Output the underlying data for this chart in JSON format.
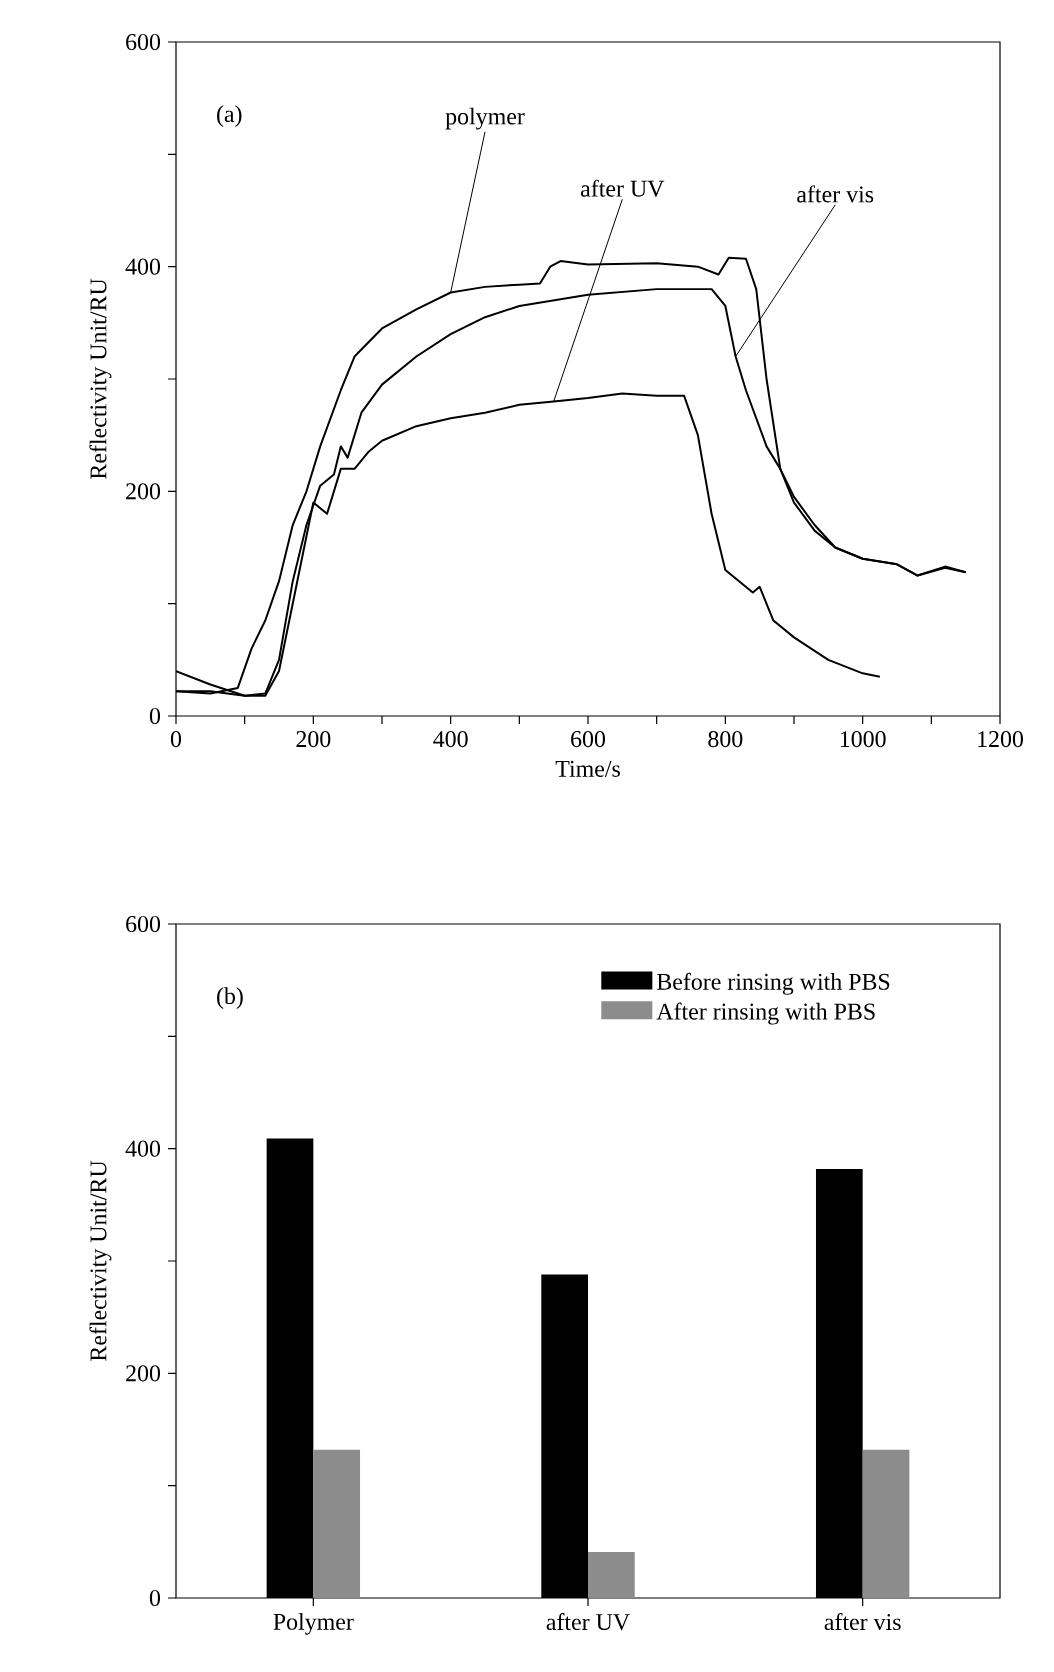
{
  "chart_data": [
    {
      "type": "line",
      "xlabel": "Time/s",
      "ylabel": "Reflectivity Unit/RU",
      "annotations": [
        "(a)"
      ],
      "xlim": [
        0,
        1200
      ],
      "ylim": [
        0,
        600
      ],
      "xticks": [
        0,
        {
          "value": 100,
          "label": null
        },
        200,
        {
          "value": 300,
          "label": null
        },
        400,
        {
          "value": 500,
          "label": null
        },
        600,
        {
          "value": 700,
          "label": null
        },
        800,
        {
          "value": 900,
          "label": null
        },
        1000,
        {
          "value": 1100,
          "label": null
        },
        1200
      ],
      "yticks": [
        0,
        {
          "value": 100,
          "label": null
        },
        200,
        {
          "value": 300,
          "label": null
        },
        400,
        {
          "value": 500,
          "label": null
        },
        600
      ],
      "series": [
        {
          "name": "polymer",
          "color": "#000000",
          "x": [
            0,
            50,
            90,
            110,
            130,
            150,
            170,
            190,
            210,
            240,
            260,
            300,
            350,
            400,
            450,
            500,
            530,
            545,
            560,
            600,
            700,
            760,
            790,
            805,
            830,
            845,
            860,
            880,
            900,
            930,
            960,
            1000,
            1050,
            1080,
            1120,
            1150
          ],
          "values": [
            22,
            20,
            25,
            60,
            85,
            120,
            170,
            200,
            240,
            290,
            320,
            345,
            362,
            377,
            382,
            384,
            385,
            400,
            405,
            402,
            403,
            400,
            393,
            408,
            407,
            380,
            300,
            220,
            190,
            165,
            150,
            140,
            135,
            125,
            133,
            128
          ]
        },
        {
          "name": "after UV",
          "color": "#000000",
          "x": [
            0,
            50,
            100,
            130,
            150,
            170,
            190,
            200,
            220,
            240,
            260,
            280,
            300,
            350,
            400,
            450,
            500,
            550,
            600,
            650,
            700,
            740,
            760,
            780,
            800,
            820,
            840,
            850,
            870,
            900,
            950,
            1000,
            1025
          ],
          "values": [
            22,
            22,
            18,
            18,
            40,
            100,
            160,
            190,
            180,
            220,
            220,
            235,
            245,
            258,
            265,
            270,
            277,
            280,
            283,
            287,
            285,
            285,
            250,
            180,
            130,
            120,
            110,
            115,
            85,
            70,
            50,
            38,
            35
          ]
        },
        {
          "name": "after vis",
          "color": "#000000",
          "x": [
            0,
            50,
            100,
            130,
            150,
            170,
            190,
            210,
            230,
            240,
            250,
            270,
            300,
            350,
            400,
            450,
            500,
            600,
            700,
            780,
            800,
            815,
            830,
            860,
            880,
            900,
            930,
            960,
            1000,
            1050,
            1080,
            1120,
            1150
          ],
          "values": [
            40,
            28,
            18,
            20,
            50,
            120,
            170,
            205,
            215,
            240,
            230,
            270,
            295,
            320,
            340,
            355,
            365,
            375,
            380,
            380,
            365,
            320,
            290,
            240,
            220,
            195,
            170,
            150,
            140,
            135,
            125,
            132,
            128
          ]
        }
      ]
    },
    {
      "type": "bar",
      "ylabel": "Reflectivity Unit/RU",
      "annotations": [
        "(b)"
      ],
      "legend": "top right",
      "categories": [
        "Polymer",
        "after UV",
        "after vis"
      ],
      "ylim": [
        0,
        600
      ],
      "yticks": [
        0,
        {
          "value": 100,
          "label": null
        },
        200,
        {
          "value": 300,
          "label": null
        },
        400,
        {
          "value": 500,
          "label": null
        },
        600
      ],
      "series": [
        {
          "name": "Before rinsing with PBS",
          "color": "#000000",
          "values": [
            409,
            288,
            382
          ]
        },
        {
          "name": "After rinsing with PBS",
          "color": "#8c8c8c",
          "values": [
            132,
            41,
            132
          ]
        }
      ]
    }
  ]
}
